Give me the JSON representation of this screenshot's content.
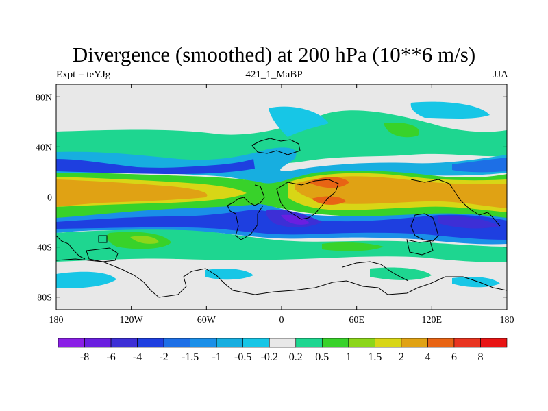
{
  "chart_data": {
    "type": "heatmap",
    "title": "Divergence (smoothed) at 200 hPa (10**6 m/s)",
    "subtitle_left": "Expt = teYJg",
    "subtitle_center": "421_1_MaBP",
    "subtitle_right": "JJA",
    "x_ticks": [
      "180",
      "120W",
      "60W",
      "0",
      "60E",
      "120E",
      "180"
    ],
    "x_tick_values": [
      -180,
      -120,
      -60,
      0,
      60,
      120,
      180
    ],
    "y_ticks": [
      "80N",
      "40N",
      "0",
      "40S",
      "80S"
    ],
    "y_tick_values": [
      80,
      40,
      0,
      -40,
      -80
    ],
    "xlim": [
      -180,
      180
    ],
    "ylim": [
      -90,
      90
    ],
    "colorbar": {
      "labels": [
        "-8",
        "-6",
        "-4",
        "-2",
        "-1.5",
        "-1",
        "-0.5",
        "-0.2",
        "0.2",
        "0.5",
        "1",
        "1.5",
        "2",
        "4",
        "6",
        "8"
      ],
      "colors": [
        "#8a1fe6",
        "#6a1fe0",
        "#3d2fd6",
        "#1e3fe0",
        "#1d6fe6",
        "#1a8fe8",
        "#17aee0",
        "#17c6e6",
        "#e8e8e8",
        "#1ed690",
        "#38d22a",
        "#8cd61a",
        "#d8d616",
        "#e0a214",
        "#e86414",
        "#e83420",
        "#e81414"
      ]
    }
  }
}
